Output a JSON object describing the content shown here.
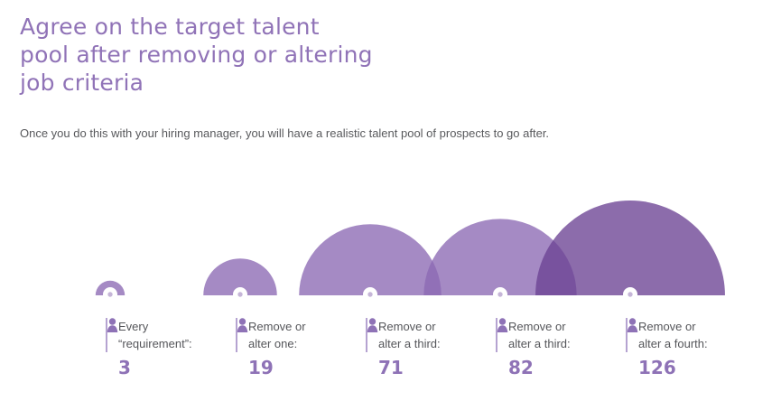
{
  "page": {
    "title_lines": [
      "Agree on the target talent",
      "pool after removing or altering",
      "job criteria"
    ],
    "subtitle": "Once you do this with your hiring manager, you will have a realistic talent pool of prospects to go after."
  },
  "chart_data": {
    "type": "area",
    "variant": "semicircle-bubble-chart",
    "title": "Agree on the target talent pool after removing or altering job criteria",
    "categories": [
      "Every “requirement”:",
      "Remove or alter one:",
      "Remove or alter a third:",
      "Remove or alter a third:",
      "Remove or alter a fourth:"
    ],
    "values": [
      3,
      19,
      71,
      82,
      126
    ],
    "value_icon": "person-icon",
    "area_scaling": "semicircle area proportional to value",
    "items": [
      {
        "label": [
          "Every",
          "“requirement”:"
        ],
        "value": 3,
        "shade": "light"
      },
      {
        "label": [
          "Remove or",
          "alter one:"
        ],
        "value": 19,
        "shade": "light"
      },
      {
        "label": [
          "Remove or",
          "alter a third:"
        ],
        "value": 71,
        "shade": "light"
      },
      {
        "label": [
          "Remove or",
          "alter a third:"
        ],
        "value": 82,
        "shade": "light"
      },
      {
        "label": [
          "Remove or",
          "alter a fourth:"
        ],
        "value": 126,
        "shade": "dark"
      }
    ],
    "colors": {
      "bubble_light": "#8c69b4",
      "bubble_dark": "#6c4393",
      "bubble_opacity": 0.78,
      "marker_fill": "#ffffff",
      "marker_dot": "#c6b6d8",
      "accent_text": "#8e72b6",
      "divider": "#b5a3d1",
      "label_text": "#55565a",
      "title_text": "#9073b7"
    }
  }
}
